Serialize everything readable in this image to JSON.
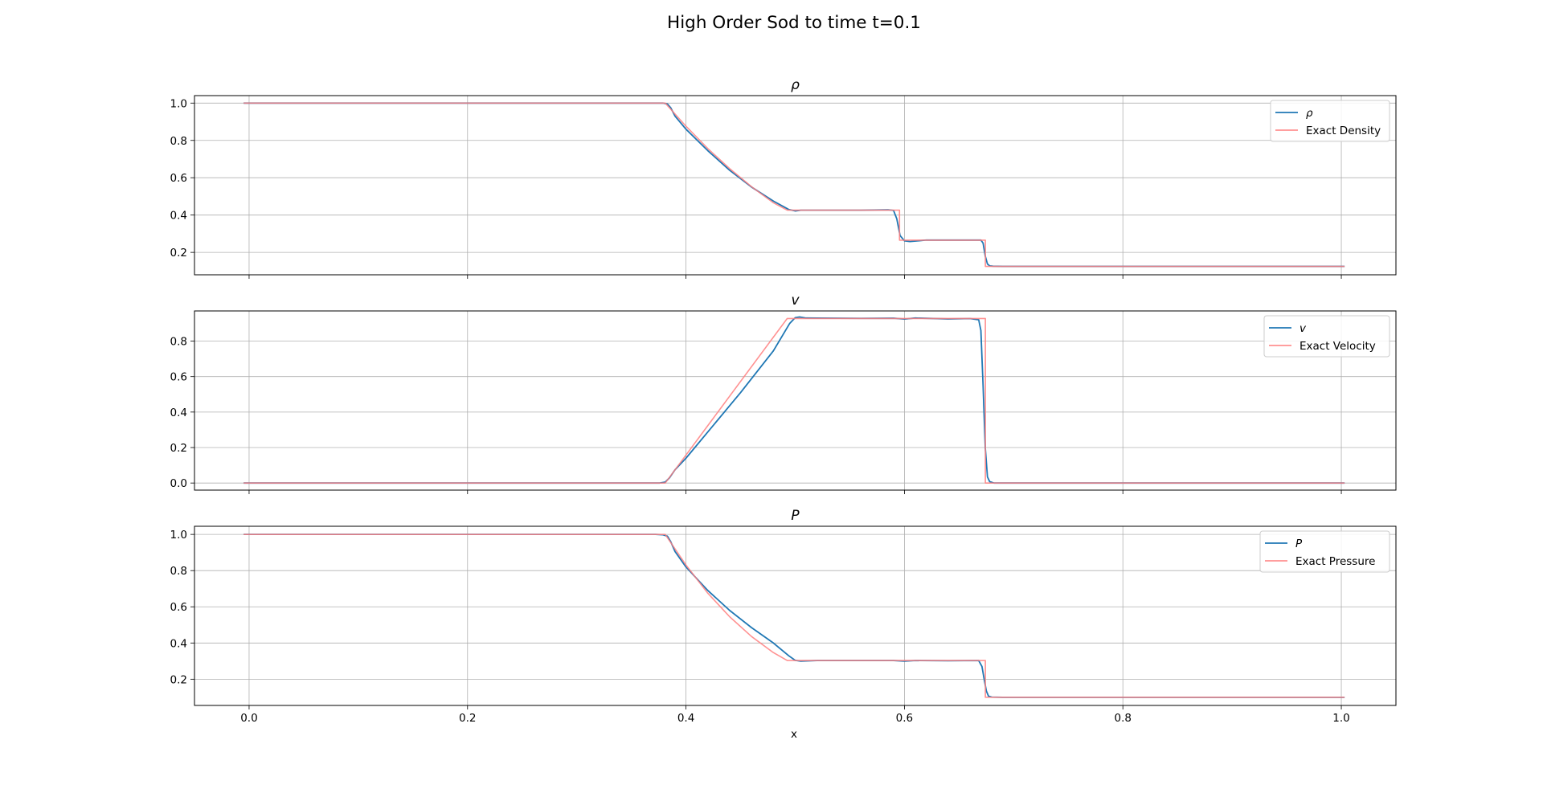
{
  "chart_data": {
    "title": "High Order Sod to time t=0.1",
    "xlabel": "x",
    "type": "line",
    "shared_x": true,
    "xlim": [
      -0.05,
      1.05
    ],
    "x_ticks": [
      "0.0",
      "0.2",
      "0.4",
      "0.6",
      "0.8",
      "1.0"
    ],
    "grid": true,
    "legend_position": "upper right",
    "colors": {
      "numerical": "#1f77b4",
      "exact": "#ff7f7f"
    },
    "subplots": [
      {
        "title": "ρ",
        "ylim": [
          0.08,
          1.04
        ],
        "y_ticks": [
          "0.2",
          "0.4",
          "0.6",
          "0.8",
          "1.0"
        ],
        "series": [
          {
            "name": "ρ",
            "style": "numerical",
            "x": [
              -0.005,
              0.37,
              0.379,
              0.383,
              0.386,
              0.39,
              0.4,
              0.42,
              0.44,
              0.46,
              0.48,
              0.494,
              0.5,
              0.505,
              0.52,
              0.56,
              0.585,
              0.59,
              0.593,
              0.596,
              0.6,
              0.605,
              0.62,
              0.65,
              0.67,
              0.672,
              0.674,
              0.676,
              0.678,
              0.681,
              0.69,
              0.8,
              1.003
            ],
            "y": [
              1.0,
              1.0,
              1.0,
              0.995,
              0.975,
              0.93,
              0.86,
              0.745,
              0.64,
              0.55,
              0.475,
              0.43,
              0.422,
              0.426,
              0.426,
              0.426,
              0.428,
              0.425,
              0.38,
              0.29,
              0.262,
              0.258,
              0.266,
              0.266,
              0.266,
              0.25,
              0.18,
              0.138,
              0.128,
              0.126,
              0.125,
              0.125,
              0.125
            ]
          },
          {
            "name": "Exact Density",
            "style": "exact",
            "x": [
              -0.005,
              0.381,
              0.4,
              0.42,
              0.44,
              0.46,
              0.48,
              0.4927,
              0.5955,
              0.5955,
              0.6741,
              0.6741,
              1.003
            ],
            "y": [
              1.0,
              1.0,
              0.876,
              0.756,
              0.649,
              0.552,
              0.466,
              0.4263,
              0.4263,
              0.2656,
              0.2656,
              0.125,
              0.125
            ]
          }
        ]
      },
      {
        "title": "v",
        "ylim": [
          -0.04,
          0.97
        ],
        "y_ticks": [
          "0.0",
          "0.2",
          "0.4",
          "0.6",
          "0.8"
        ],
        "series": [
          {
            "name": "v",
            "style": "numerical",
            "x": [
              -0.005,
              0.376,
              0.381,
              0.385,
              0.39,
              0.4,
              0.45,
              0.48,
              0.495,
              0.5,
              0.504,
              0.51,
              0.56,
              0.59,
              0.6,
              0.61,
              0.64,
              0.66,
              0.668,
              0.67,
              0.672,
              0.674,
              0.676,
              0.678,
              0.682,
              1.003
            ],
            "y": [
              0.0,
              0.0,
              0.005,
              0.03,
              0.075,
              0.14,
              0.51,
              0.745,
              0.9,
              0.932,
              0.936,
              0.93,
              0.928,
              0.929,
              0.924,
              0.93,
              0.925,
              0.927,
              0.92,
              0.86,
              0.55,
              0.2,
              0.035,
              0.008,
              0.0,
              0.0
            ]
          },
          {
            "name": "Exact Velocity",
            "style": "exact",
            "x": [
              -0.005,
              0.381,
              0.4927,
              0.6741,
              0.6741,
              1.003
            ],
            "y": [
              0.0,
              0.0,
              0.9274,
              0.9274,
              0.0,
              0.0
            ]
          }
        ]
      },
      {
        "title": "P",
        "ylim": [
          0.055,
          1.045
        ],
        "y_ticks": [
          "0.2",
          "0.4",
          "0.6",
          "0.8",
          "1.0"
        ],
        "series": [
          {
            "name": "P",
            "style": "numerical",
            "x": [
              -0.005,
              0.372,
              0.379,
              0.383,
              0.386,
              0.39,
              0.4,
              0.42,
              0.44,
              0.46,
              0.48,
              0.494,
              0.5,
              0.505,
              0.52,
              0.56,
              0.59,
              0.6,
              0.61,
              0.64,
              0.668,
              0.671,
              0.673,
              0.675,
              0.677,
              0.68,
              0.69,
              0.8,
              1.003
            ],
            "y": [
              1.0,
              1.0,
              0.998,
              0.99,
              0.96,
              0.905,
              0.82,
              0.69,
              0.58,
              0.485,
              0.4,
              0.33,
              0.304,
              0.3,
              0.303,
              0.303,
              0.303,
              0.3,
              0.303,
              0.302,
              0.303,
              0.27,
              0.2,
              0.135,
              0.106,
              0.101,
              0.1,
              0.1,
              0.1
            ]
          },
          {
            "name": "Exact Pressure",
            "style": "exact",
            "x": [
              -0.005,
              0.381,
              0.4,
              0.42,
              0.44,
              0.46,
              0.48,
              0.4927,
              0.6741,
              0.6741,
              1.003
            ],
            "y": [
              1.0,
              1.0,
              0.831,
              0.675,
              0.545,
              0.436,
              0.347,
              0.3031,
              0.3031,
              0.1,
              0.1
            ]
          }
        ]
      }
    ]
  }
}
